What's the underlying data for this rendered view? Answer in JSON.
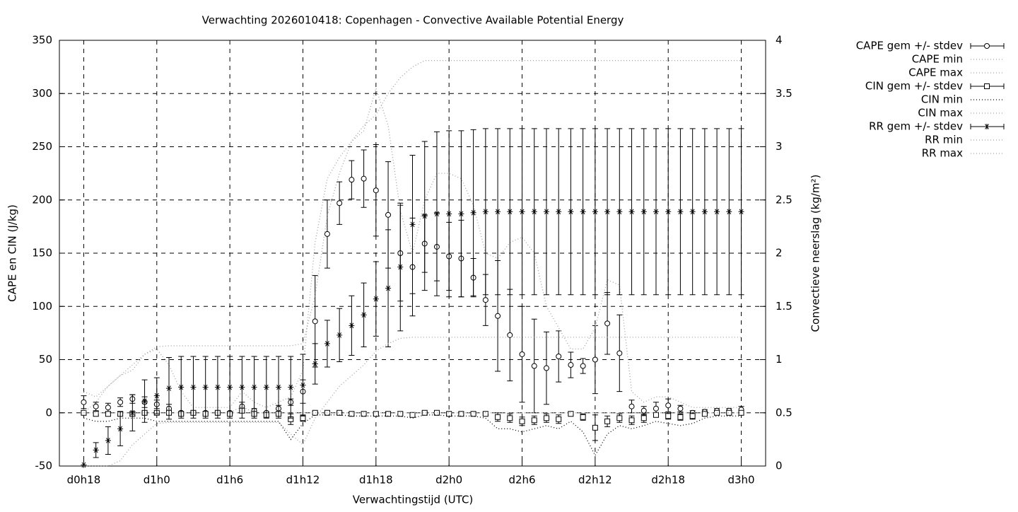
{
  "chart_data": {
    "type": "errorbar",
    "title": "Verwachting 2026010418: Copenhagen - Convective Available Potential Energy",
    "xlabel": "Verwachtingstijd (UTC)",
    "ylabel": "CAPE en CIN (J/kg)",
    "y2label": "Convectieve neerslag (kg/m²)",
    "grid": true,
    "legend": "outside-right",
    "xlim": [
      16,
      74
    ],
    "xticks": [
      {
        "value": 18,
        "label": "d0h18"
      },
      {
        "value": 24,
        "label": "d1h0"
      },
      {
        "value": 30,
        "label": "d1h6"
      },
      {
        "value": 36,
        "label": "d1h12"
      },
      {
        "value": 42,
        "label": "d1h18"
      },
      {
        "value": 48,
        "label": "d2h0"
      },
      {
        "value": 54,
        "label": "d2h6"
      },
      {
        "value": 60,
        "label": "d2h12"
      },
      {
        "value": 66,
        "label": "d2h18"
      },
      {
        "value": 72,
        "label": "d3h0"
      }
    ],
    "ylim": [
      -50,
      350
    ],
    "yticks": [
      -50,
      0,
      50,
      100,
      150,
      200,
      250,
      300,
      350
    ],
    "y2lim": [
      0,
      4
    ],
    "y2ticks": [
      0,
      0.5,
      1,
      1.5,
      2,
      2.5,
      3,
      3.5,
      4
    ],
    "x": [
      18,
      19,
      20,
      21,
      22,
      23,
      24,
      25,
      26,
      27,
      28,
      29,
      30,
      31,
      32,
      33,
      34,
      35,
      36,
      37,
      38,
      39,
      40,
      41,
      42,
      43,
      44,
      45,
      46,
      47,
      48,
      49,
      50,
      51,
      52,
      53,
      54,
      55,
      56,
      57,
      58,
      59,
      60,
      61,
      62,
      63,
      64,
      65,
      66,
      67,
      68,
      69,
      70,
      71,
      72
    ],
    "series": [
      {
        "name": "CAPE gem +/- stdev",
        "color": "#000000",
        "style": "errorbar",
        "marker": "circle",
        "values": [
          10,
          6,
          5,
          10,
          13,
          10,
          8,
          4,
          0,
          0,
          0,
          0,
          0,
          6,
          2,
          0,
          4,
          10,
          20,
          86,
          168,
          197,
          219,
          220,
          209,
          186,
          150,
          137,
          159,
          156,
          147,
          145,
          127,
          106,
          91,
          73,
          55,
          44,
          42,
          53,
          45,
          44,
          50,
          84,
          56,
          6,
          2,
          4,
          7,
          4,
          0,
          1,
          2,
          2,
          3
        ],
        "errors": [
          6,
          4,
          4,
          4,
          4,
          5,
          4,
          4,
          1,
          1,
          1,
          1,
          1,
          4,
          2,
          1,
          3,
          3,
          11,
          43,
          32,
          20,
          18,
          27,
          43,
          50,
          45,
          46,
          27,
          32,
          32,
          36,
          18,
          24,
          52,
          43,
          45,
          44,
          34,
          24,
          12,
          7,
          32,
          29,
          36,
          6,
          4,
          6,
          6,
          3,
          2,
          2,
          2,
          2,
          3
        ]
      },
      {
        "name": "CAPE min",
        "color": "#a0a0a0",
        "style": "dotted",
        "values": [
          0,
          0,
          0,
          0,
          0,
          0,
          0,
          0,
          0,
          0,
          0,
          0,
          0,
          0,
          0,
          0,
          0,
          0,
          0,
          0,
          0,
          0,
          0,
          0,
          0,
          0,
          0,
          0,
          0,
          0,
          0,
          0,
          0,
          0,
          0,
          0,
          0,
          0,
          0,
          0,
          0,
          0,
          0,
          0,
          0,
          0,
          0,
          0,
          0,
          0,
          0,
          0,
          0,
          0,
          0
        ]
      },
      {
        "name": "CAPE max",
        "color": "#a0a0a0",
        "style": "dotted",
        "values": [
          20,
          15,
          25,
          35,
          40,
          55,
          60,
          45,
          20,
          5,
          5,
          5,
          5,
          20,
          10,
          5,
          10,
          15,
          40,
          160,
          220,
          240,
          255,
          265,
          305,
          270,
          190,
          150,
          200,
          225,
          225,
          220,
          195,
          150,
          145,
          160,
          165,
          150,
          100,
          80,
          60,
          60,
          80,
          125,
          120,
          20,
          10,
          15,
          15,
          10,
          5,
          5,
          5,
          5,
          5
        ]
      },
      {
        "name": "CIN gem +/- stdev",
        "color": "#000000",
        "style": "errorbar",
        "marker": "square",
        "values": [
          0,
          -1,
          -1,
          -1,
          -1,
          0,
          0,
          0,
          -1,
          0,
          -1,
          0,
          -1,
          2,
          -1,
          -2,
          -1,
          -6,
          -5,
          0,
          0,
          0,
          -1,
          -1,
          -1,
          -1,
          -1,
          -2,
          0,
          0,
          -1,
          -1,
          -1,
          -1,
          -4,
          -5,
          -8,
          -7,
          -5,
          -6,
          -1,
          -4,
          -14,
          -8,
          -5,
          -7,
          -5,
          -2,
          -3,
          -4,
          -3,
          -1,
          0,
          0,
          0
        ],
        "errors": [
          2,
          2,
          2,
          2,
          2,
          1,
          1,
          1,
          1,
          1,
          1,
          1,
          1,
          2,
          2,
          2,
          2,
          5,
          3,
          1,
          1,
          1,
          1,
          1,
          1,
          1,
          1,
          1,
          1,
          1,
          1,
          1,
          1,
          1,
          4,
          4,
          4,
          4,
          4,
          4,
          1,
          3,
          12,
          5,
          4,
          4,
          4,
          2,
          3,
          3,
          3,
          2,
          2,
          2,
          2
        ]
      },
      {
        "name": "CIN min",
        "color": "#000000",
        "style": "dotted",
        "values": [
          -5,
          -8,
          -8,
          -5,
          -5,
          -5,
          -8,
          -8,
          -8,
          -8,
          -8,
          -8,
          -8,
          -8,
          -8,
          -8,
          -8,
          -25,
          -10,
          -2,
          -2,
          -2,
          -3,
          -3,
          -3,
          -3,
          -3,
          -5,
          -2,
          -2,
          -3,
          -3,
          -3,
          -5,
          -15,
          -15,
          -18,
          -15,
          -12,
          -15,
          -8,
          -18,
          -40,
          -20,
          -12,
          -15,
          -12,
          -8,
          -10,
          -12,
          -10,
          -5,
          -3,
          -3,
          -3
        ]
      },
      {
        "name": "CIN max",
        "color": "#a0a0a0",
        "style": "dotted",
        "values": [
          0,
          0,
          0,
          0,
          0,
          0,
          0,
          0,
          0,
          0,
          0,
          0,
          0,
          6,
          0,
          0,
          0,
          0,
          0,
          0,
          0,
          0,
          0,
          0,
          0,
          0,
          0,
          0,
          0,
          0,
          0,
          0,
          0,
          0,
          0,
          0,
          0,
          0,
          0,
          0,
          0,
          0,
          0,
          0,
          0,
          0,
          0,
          0,
          0,
          0,
          0,
          0,
          0,
          0,
          0
        ]
      },
      {
        "name": "RR gem +/- stdev",
        "color": "#000000",
        "style": "errorbar",
        "marker": "star",
        "axis": "y2",
        "values": [
          0.01,
          0.15,
          0.24,
          0.35,
          0.5,
          0.61,
          0.66,
          0.73,
          0.74,
          0.74,
          0.74,
          0.74,
          0.74,
          0.74,
          0.74,
          0.74,
          0.74,
          0.74,
          0.76,
          0.96,
          1.15,
          1.23,
          1.32,
          1.42,
          1.57,
          1.67,
          1.87,
          2.27,
          2.35,
          2.37,
          2.37,
          2.37,
          2.38,
          2.39,
          2.39,
          2.39,
          2.39,
          2.39,
          2.39,
          2.39,
          2.39,
          2.39,
          2.39,
          2.39,
          2.39,
          2.39,
          2.39,
          2.39,
          2.39,
          2.39,
          2.39,
          2.39,
          2.39,
          2.39,
          2.39
        ],
        "errors": [
          0,
          0.07,
          0.13,
          0.16,
          0.17,
          0.2,
          0.17,
          0.29,
          0.29,
          0.29,
          0.29,
          0.29,
          0.29,
          0.29,
          0.29,
          0.29,
          0.29,
          0.29,
          0.29,
          0.19,
          0.22,
          0.25,
          0.28,
          0.3,
          0.35,
          0.55,
          0.6,
          0.65,
          0.7,
          0.77,
          0.78,
          0.78,
          0.78,
          0.78,
          0.78,
          0.78,
          0.78,
          0.78,
          0.78,
          0.78,
          0.78,
          0.78,
          0.78,
          0.78,
          0.78,
          0.78,
          0.78,
          0.78,
          0.78,
          0.78,
          0.78,
          0.78,
          0.78,
          0.78,
          0.78
        ]
      },
      {
        "name": "RR min",
        "color": "#a0a0a0",
        "style": "dotted",
        "axis": "y2",
        "values": [
          0,
          0,
          0,
          0.05,
          0.2,
          0.3,
          0.4,
          0.41,
          0.41,
          0.41,
          0.41,
          0.41,
          0.41,
          0.41,
          0.41,
          0.41,
          0.41,
          0.3,
          0.2,
          0.45,
          0.6,
          0.75,
          0.85,
          0.95,
          1.08,
          1.15,
          1.2,
          1.21,
          1.21,
          1.21,
          1.21,
          1.21,
          1.21,
          1.21,
          1.21,
          1.21,
          1.21,
          1.21,
          1.21,
          1.21,
          1.21,
          1.21,
          1.21,
          1.21,
          1.21,
          1.21,
          1.21,
          1.21,
          1.21,
          1.21,
          1.21,
          1.21,
          1.21,
          1.21,
          1.21
        ]
      },
      {
        "name": "RR max",
        "color": "#a0a0a0",
        "style": "dotted",
        "axis": "y2",
        "values": [
          0.5,
          0.6,
          0.75,
          0.85,
          0.95,
          1.05,
          1.12,
          1.13,
          1.13,
          1.13,
          1.13,
          1.13,
          1.13,
          1.13,
          1.13,
          1.13,
          1.13,
          1.13,
          1.15,
          1.6,
          2.35,
          2.75,
          3.05,
          3.2,
          3.3,
          3.5,
          3.65,
          3.75,
          3.81,
          3.81,
          3.81,
          3.81,
          3.81,
          3.81,
          3.81,
          3.81,
          3.81,
          3.81,
          3.81,
          3.81,
          3.81,
          3.81,
          3.81,
          3.81,
          3.81,
          3.81,
          3.81,
          3.81,
          3.81,
          3.81,
          3.81,
          3.81,
          3.81,
          3.81,
          3.81
        ]
      }
    ]
  }
}
